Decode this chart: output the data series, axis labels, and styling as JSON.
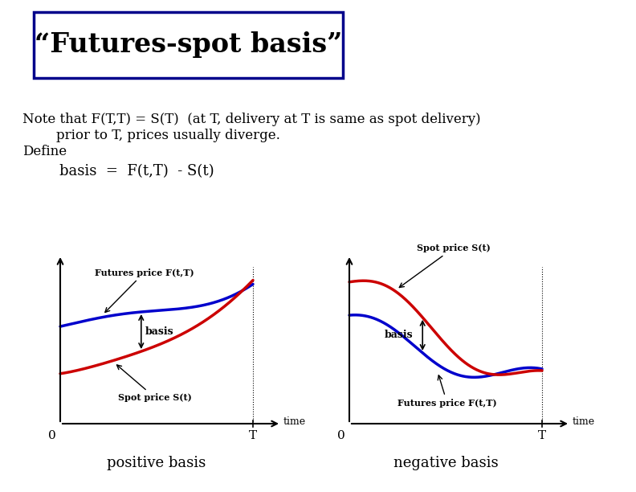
{
  "title": "“Futures-spot basis”",
  "title_box_color": "#00008B",
  "background_color": "#ffffff",
  "text_line1": "Note that F(T,T) = S(T)  (at T, delivery at T is same as spot delivery)",
  "text_line2": "        prior to T, prices usually diverge.",
  "text_line3": "Define",
  "text_line4": "        basis  =  F(t,T)  - S(t)",
  "futures_color": "#0000CC",
  "spot_color": "#CC0000",
  "left_label_futures": "Futures price F(t,T)",
  "left_label_spot": "Spot price S(t)",
  "left_label_basis": "basis",
  "right_label_futures": "Futures price F(t,T)",
  "right_label_spot": "Spot price S(t)",
  "right_label_basis": "basis",
  "left_caption": "positive basis",
  "right_caption": "negative basis"
}
